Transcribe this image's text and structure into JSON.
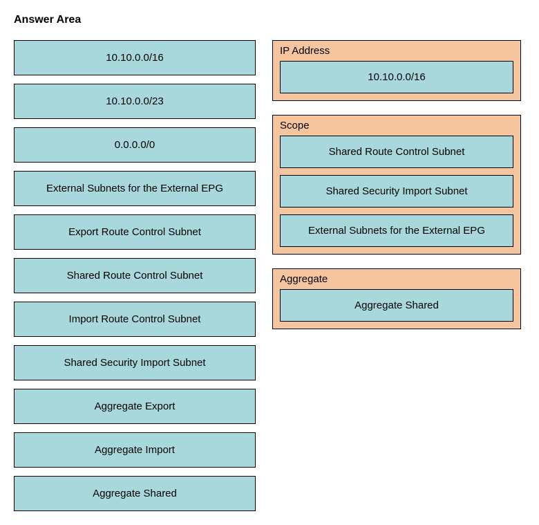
{
  "title": "Answer Area",
  "colors": {
    "item_bg": "#a8d8dc",
    "zone_bg": "#f5c5a0",
    "border": "#000000",
    "text": "#000000",
    "page_bg": "#ffffff"
  },
  "left_items": [
    "10.10.0.0/16",
    "10.10.0.0/23",
    "0.0.0.0/0",
    "External Subnets for the External EPG",
    "Export Route Control Subnet",
    "Shared Route Control Subnet",
    "Import Route Control Subnet",
    "Shared Security Import Subnet",
    "Aggregate Export",
    "Aggregate Import",
    "Aggregate Shared"
  ],
  "right_zones": [
    {
      "label": "IP Address",
      "items": [
        "10.10.0.0/16"
      ]
    },
    {
      "label": "Scope",
      "items": [
        "Shared Route Control Subnet",
        "Shared Security Import Subnet",
        "External Subnets for the External EPG"
      ]
    },
    {
      "label": "Aggregate",
      "items": [
        "Aggregate Shared"
      ]
    }
  ]
}
